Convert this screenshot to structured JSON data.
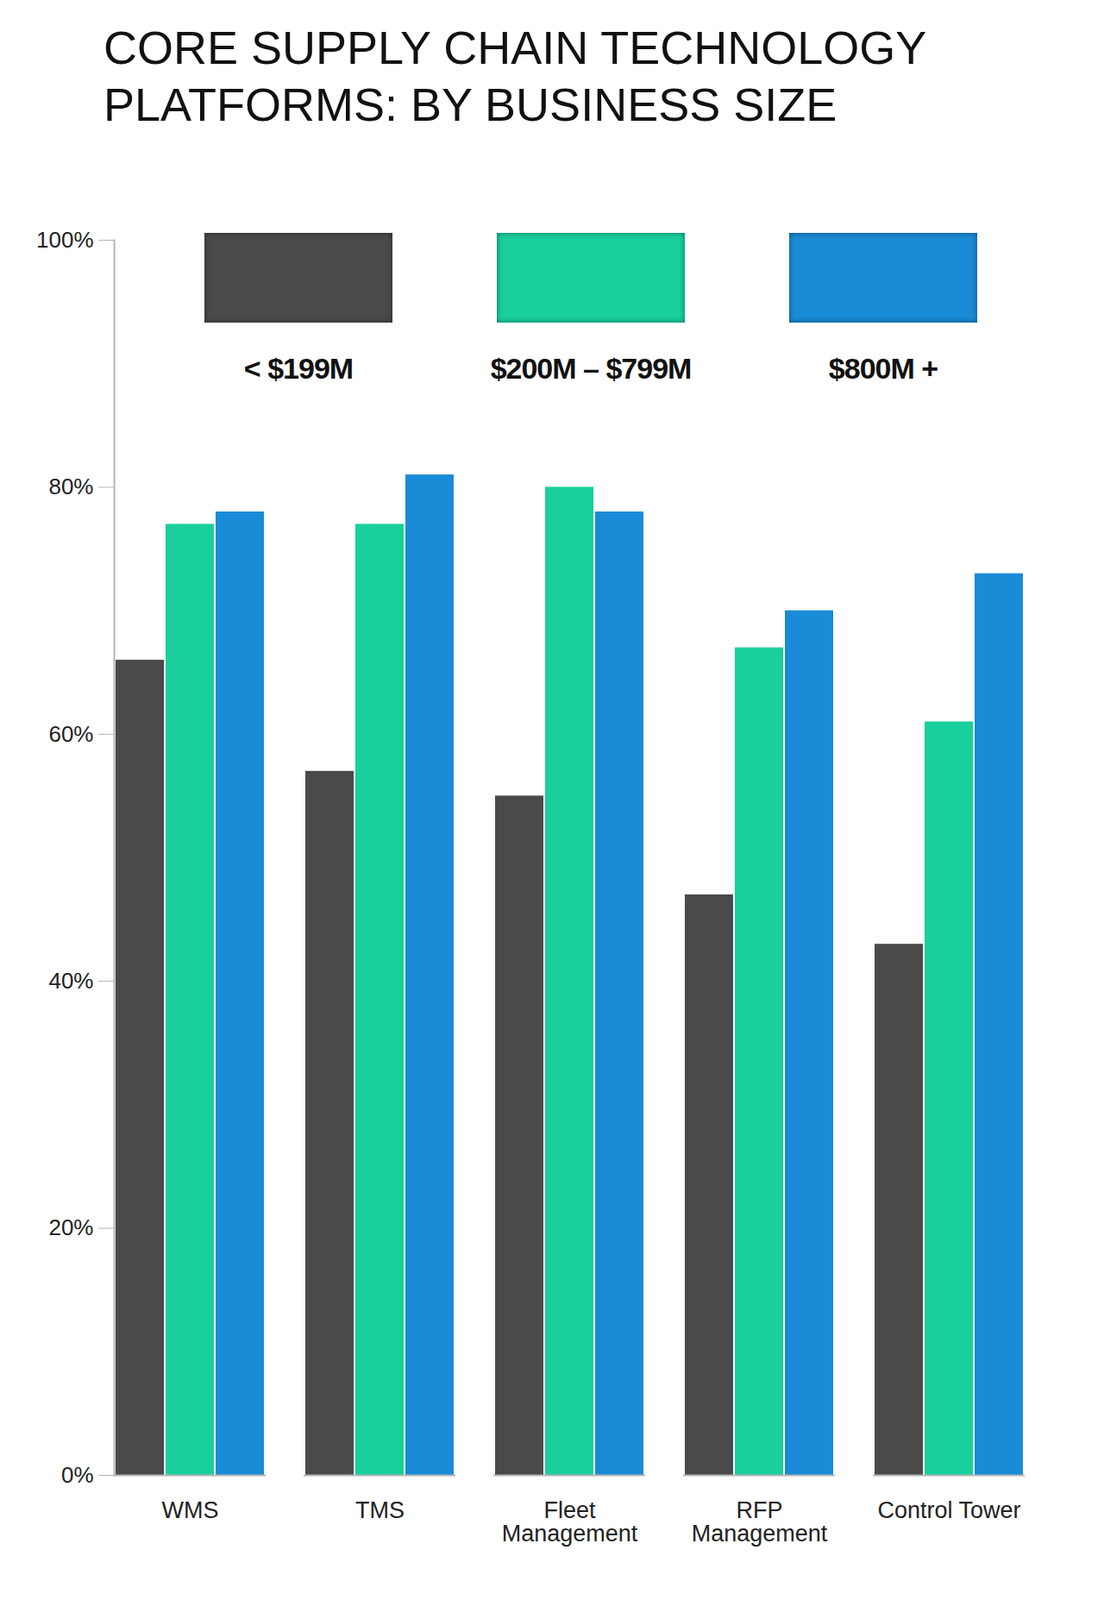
{
  "chart_data": {
    "type": "bar",
    "title": "CORE SUPPLY CHAIN TECHNOLOGY PLATFORMS: BY BUSINESS SIZE",
    "categories": [
      "WMS",
      "TMS",
      "Fleet Management",
      "RFP Management",
      "Control Tower"
    ],
    "series": [
      {
        "name": "< $199M",
        "color": "#4a4a4a",
        "values": [
          66,
          57,
          55,
          47,
          43
        ]
      },
      {
        "name": "$200M – $799M",
        "color": "#19cf9b",
        "values": [
          77,
          77,
          80,
          67,
          61
        ]
      },
      {
        "name": "$800M +",
        "color": "#1a8bd6",
        "values": [
          78,
          81,
          78,
          70,
          73
        ]
      }
    ],
    "ylim": [
      0,
      100
    ],
    "yticks": [
      {
        "value": 0,
        "label": "0%"
      },
      {
        "value": 20,
        "label": "20%"
      },
      {
        "value": 40,
        "label": "40%"
      },
      {
        "value": 60,
        "label": "60%"
      },
      {
        "value": 80,
        "label": "80%"
      },
      {
        "value": 100,
        "label": "100%"
      }
    ],
    "grid": false,
    "legend": "top"
  }
}
